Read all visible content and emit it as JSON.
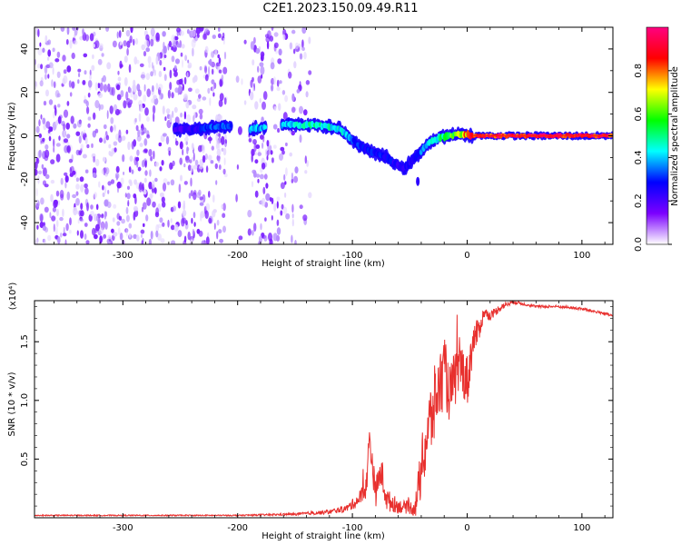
{
  "figure": {
    "title": "C2E1.2023.150.09.49.R11"
  },
  "chart_data": [
    {
      "type": "heatmap",
      "xlabel": "Height of straight line (km)",
      "ylabel": "Frequency (Hz)",
      "xlim": [
        -377,
        127
      ],
      "ylim": [
        -50,
        50
      ],
      "xticks": [
        -300,
        -200,
        -100,
        0,
        100
      ],
      "yticks": [
        -40,
        -20,
        0,
        20,
        40
      ],
      "colorbar": {
        "label": "Normalized spectral amplitude",
        "range": [
          0,
          1
        ],
        "ticks": [
          0.0,
          0.2,
          0.4,
          0.6,
          0.8
        ],
        "colors": [
          "#ffffff",
          "#7b00ff",
          "#0000ff",
          "#00ffff",
          "#00ff00",
          "#ffff00",
          "#ff0000",
          "#ff0080"
        ]
      },
      "ridge": {
        "x": [
          -255,
          -240,
          -220,
          -200,
          -190,
          -160,
          -150,
          -130,
          -110,
          -100,
          -90,
          -80,
          -70,
          -60,
          -55,
          -45,
          -35,
          -25,
          -15,
          -5,
          5,
          20,
          60,
          127
        ],
        "y": [
          3,
          3,
          4,
          5,
          3,
          5,
          5,
          5,
          3,
          -2,
          -6,
          -8,
          -10,
          -14,
          -15,
          -10,
          -4,
          -1,
          0,
          1,
          0,
          0,
          0,
          0
        ],
        "amplitude": [
          0.2,
          0.25,
          0.35,
          0.35,
          0.4,
          0.4,
          0.45,
          0.5,
          0.45,
          0.35,
          0.3,
          0.3,
          0.3,
          0.25,
          0.25,
          0.3,
          0.4,
          0.5,
          0.6,
          0.7,
          0.95,
          0.95,
          0.95,
          0.95
        ]
      },
      "outlier": {
        "x": -43,
        "y": -21
      }
    },
    {
      "type": "line",
      "xlabel": "Height of straight line (km)",
      "ylabel": "SNR (10 * v/v)",
      "scale_label": "(x10⁴)",
      "xlim": [
        -377,
        127
      ],
      "ylim": [
        0,
        1.85
      ],
      "xticks": [
        -300,
        -200,
        -100,
        0,
        100
      ],
      "yticks": [
        0.5,
        1.0,
        1.5
      ],
      "series": [
        {
          "color": "#e8302e",
          "x": [
            -377,
            -300,
            -200,
            -150,
            -120,
            -105,
            -95,
            -88,
            -85,
            -80,
            -75,
            -70,
            -60,
            -50,
            -45,
            -40,
            -35,
            -30,
            -25,
            -20,
            -15,
            -10,
            -5,
            0,
            5,
            10,
            15,
            20,
            30,
            40,
            50,
            60,
            80,
            100,
            120,
            127
          ],
          "y": [
            0.02,
            0.02,
            0.02,
            0.03,
            0.05,
            0.08,
            0.15,
            0.25,
            0.7,
            0.2,
            0.4,
            0.15,
            0.1,
            0.08,
            0.1,
            0.4,
            0.7,
            0.9,
            1.1,
            1.25,
            1.05,
            1.2,
            1.3,
            1.15,
            1.5,
            1.6,
            1.75,
            1.72,
            1.8,
            1.84,
            1.82,
            1.8,
            1.8,
            1.78,
            1.74,
            1.72
          ],
          "noise": [
            0.005,
            0.005,
            0.005,
            0.01,
            0.02,
            0.03,
            0.06,
            0.1,
            0.15,
            0.12,
            0.15,
            0.1,
            0.06,
            0.05,
            0.1,
            0.25,
            0.3,
            0.35,
            0.3,
            0.3,
            0.25,
            0.25,
            0.2,
            0.25,
            0.15,
            0.1,
            0.05,
            0.04,
            0.03,
            0.015,
            0.012,
            0.012,
            0.012,
            0.012,
            0.012,
            0.012
          ]
        }
      ]
    }
  ]
}
